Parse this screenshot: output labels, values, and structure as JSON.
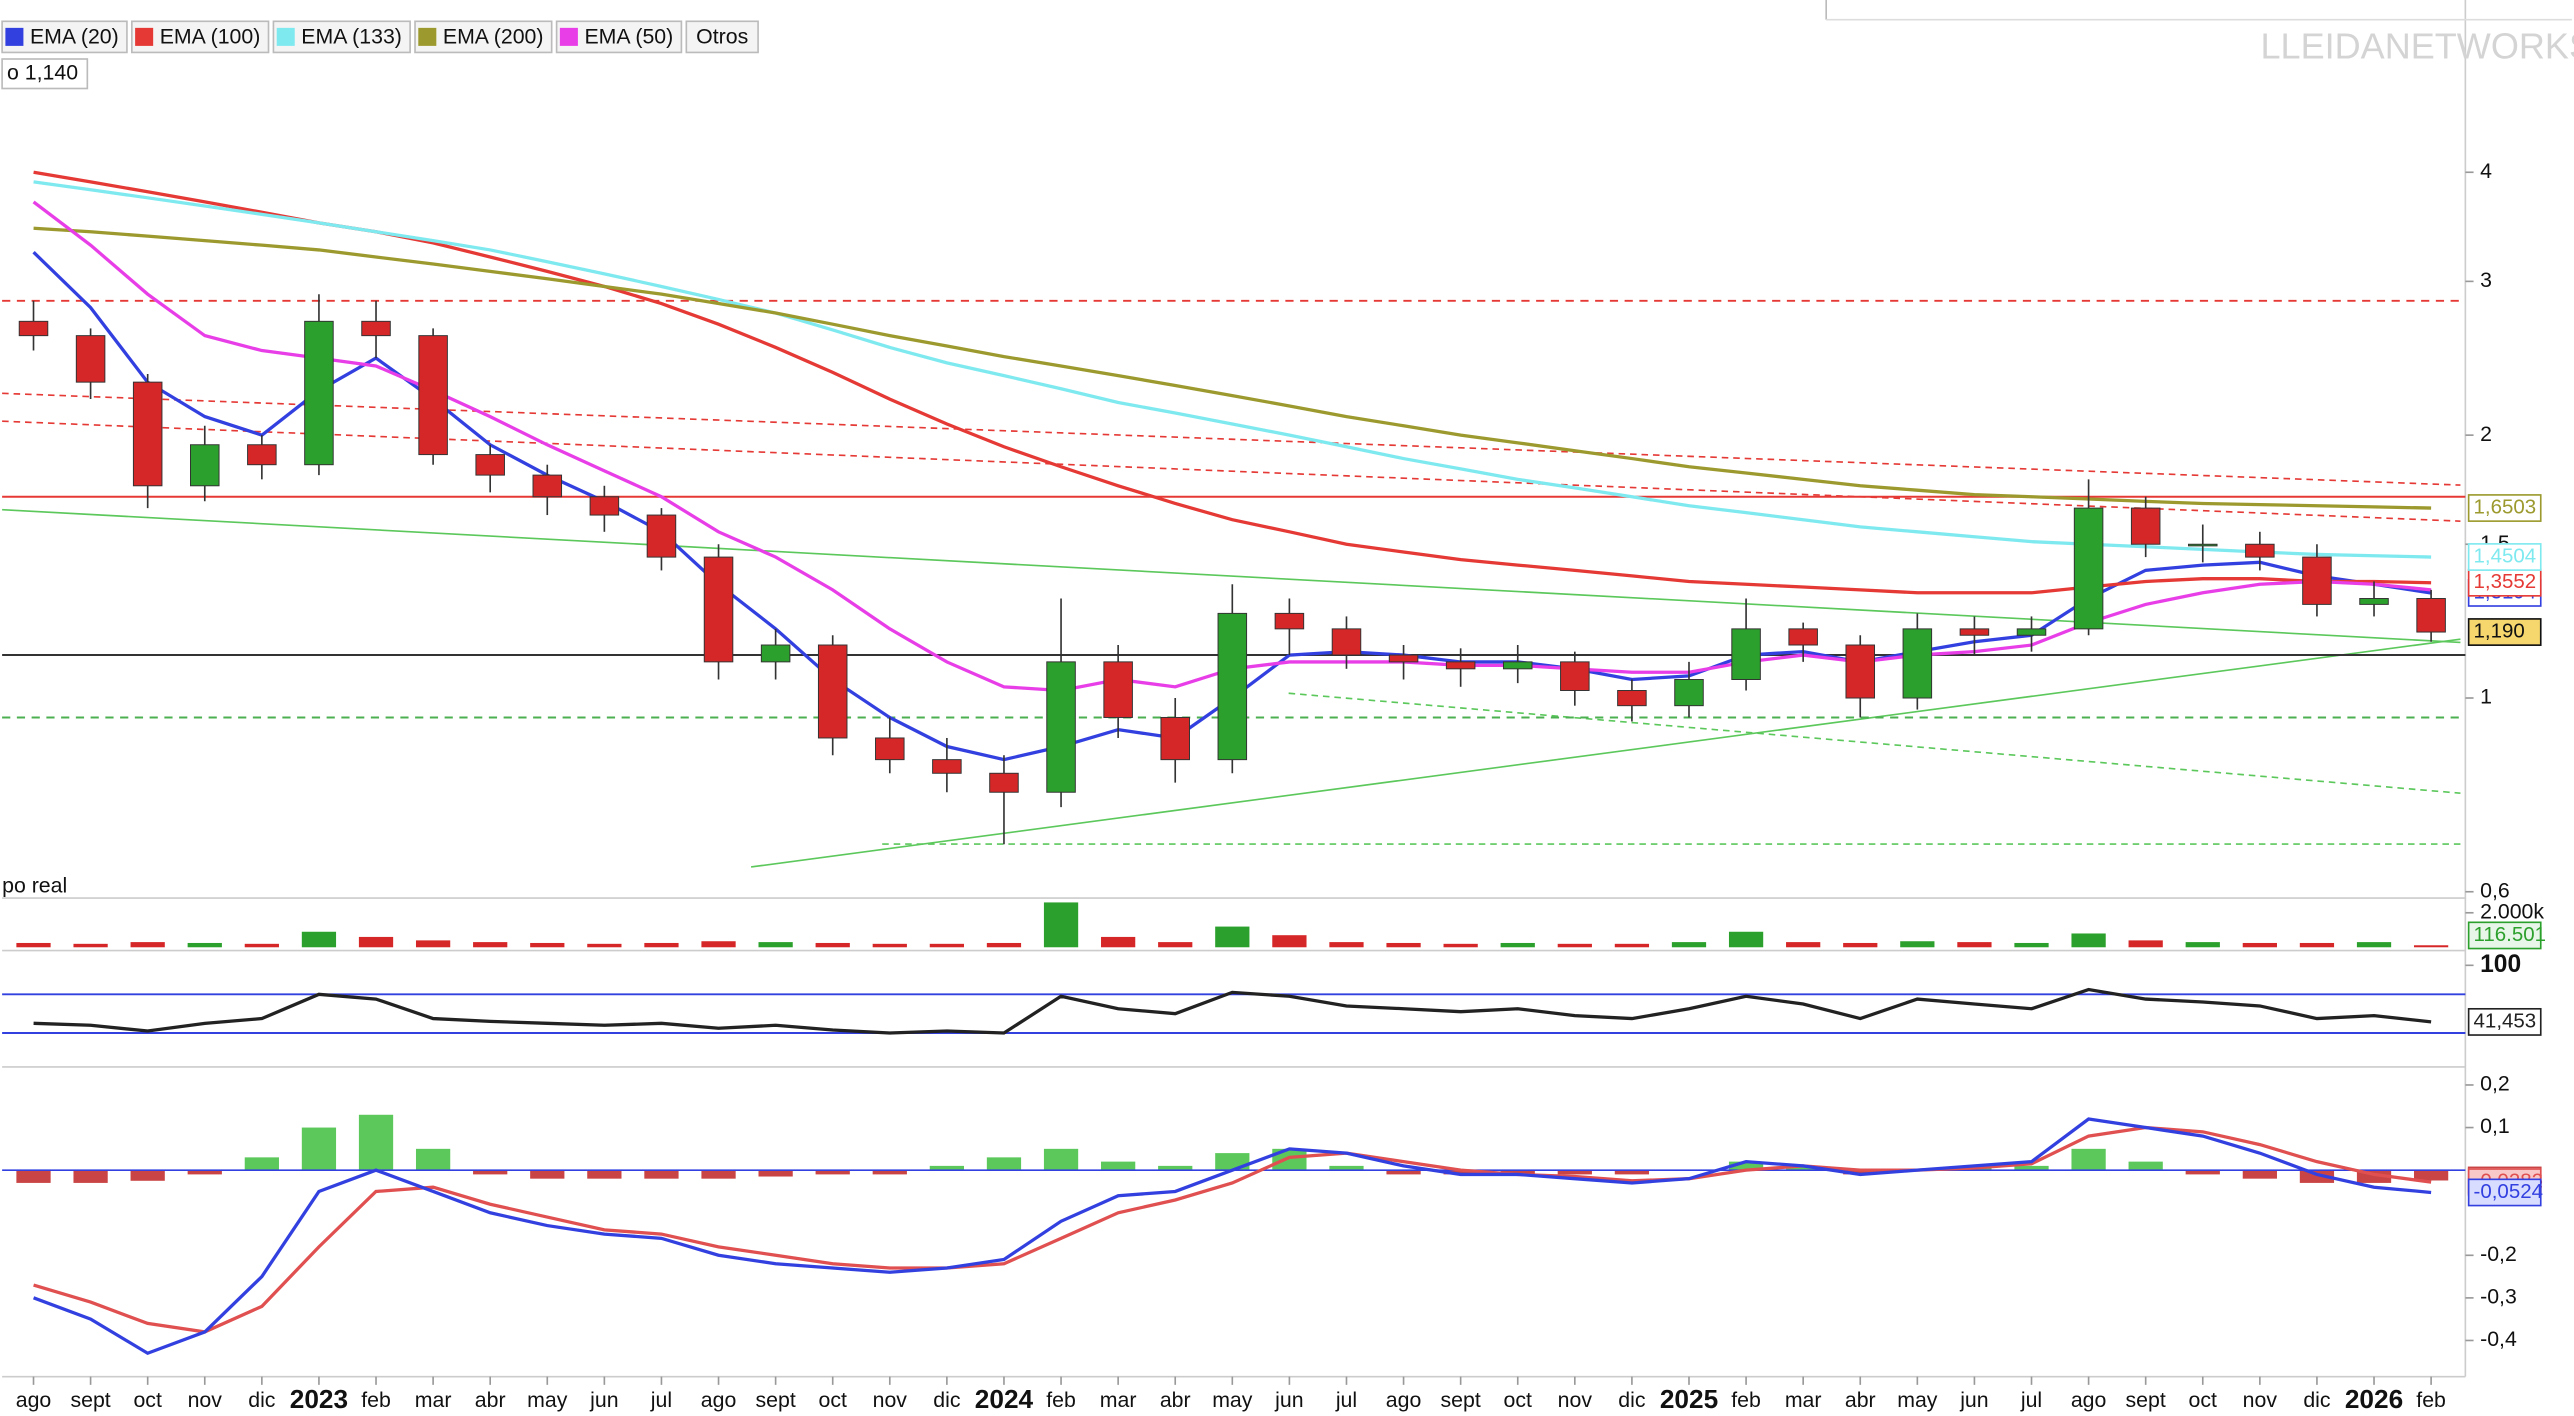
{
  "legend_extra": "Otros",
  "info": "o 1,140",
  "watermark": "LLEIDANETWORKS",
  "realtime": "po real",
  "chart_data": [
    {
      "type": "candlestick",
      "log": true,
      "xlim": [
        -0.55,
        42.6
      ],
      "ylim": [
        0.59,
        6.3
      ],
      "yticks": [
        {
          "value": 0.6,
          "label": "0,6"
        },
        1,
        {
          "value": 1.5,
          "label": "1,5"
        },
        2,
        3,
        4
      ],
      "x": [
        0,
        1,
        2,
        3,
        4,
        5,
        6,
        7,
        8,
        9,
        10,
        11,
        12,
        13,
        14,
        15,
        16,
        17,
        18,
        19,
        20,
        21,
        22,
        23,
        24,
        25,
        26,
        27,
        28,
        29,
        30,
        31,
        32,
        33,
        34,
        35,
        36,
        37,
        38,
        39,
        40,
        41,
        42
      ],
      "open": [
        2.7,
        2.6,
        2.3,
        1.75,
        1.95,
        1.85,
        2.7,
        2.6,
        1.9,
        1.8,
        1.7,
        1.62,
        1.45,
        1.1,
        1.15,
        0.9,
        0.85,
        0.82,
        0.78,
        1.1,
        0.95,
        0.85,
        1.25,
        1.2,
        1.12,
        1.1,
        1.08,
        1.1,
        1.02,
        0.98,
        1.05,
        1.2,
        1.15,
        1.0,
        1.2,
        1.18,
        1.2,
        1.65,
        1.5,
        1.5,
        1.45,
        1.28,
        1.3
      ],
      "high": [
        2.85,
        2.65,
        2.35,
        2.05,
        2.0,
        2.9,
        2.85,
        2.65,
        1.95,
        1.85,
        1.75,
        1.65,
        1.5,
        1.2,
        1.18,
        0.95,
        0.9,
        0.86,
        1.3,
        1.15,
        1.0,
        1.35,
        1.3,
        1.24,
        1.15,
        1.14,
        1.15,
        1.13,
        1.05,
        1.1,
        1.3,
        1.22,
        1.18,
        1.25,
        1.24,
        1.24,
        1.78,
        1.7,
        1.58,
        1.55,
        1.5,
        1.36,
        1.33
      ],
      "low": [
        2.5,
        2.2,
        1.65,
        1.68,
        1.78,
        1.8,
        2.45,
        1.85,
        1.72,
        1.62,
        1.55,
        1.4,
        1.05,
        1.05,
        0.86,
        0.82,
        0.78,
        0.68,
        0.75,
        0.9,
        0.8,
        0.82,
        1.12,
        1.08,
        1.05,
        1.03,
        1.04,
        0.98,
        0.94,
        0.95,
        1.02,
        1.1,
        0.95,
        0.97,
        1.12,
        1.13,
        1.18,
        1.45,
        1.43,
        1.4,
        1.24,
        1.24,
        1.16
      ],
      "close": [
        2.6,
        2.3,
        1.75,
        1.95,
        1.85,
        2.7,
        2.6,
        1.9,
        1.8,
        1.7,
        1.62,
        1.45,
        1.1,
        1.15,
        0.9,
        0.85,
        0.82,
        0.78,
        1.1,
        0.95,
        0.85,
        1.25,
        1.2,
        1.12,
        1.1,
        1.08,
        1.1,
        1.02,
        0.98,
        1.05,
        1.2,
        1.15,
        1.0,
        1.2,
        1.18,
        1.2,
        1.65,
        1.5,
        1.5,
        1.45,
        1.28,
        1.3,
        1.19
      ],
      "up_color": "#2ca02c",
      "down_color": "#d62728",
      "last_label": "1,190",
      "last_label_color": "#f5d76e",
      "hlines": [
        {
          "value": 2.85,
          "color": "#e53935",
          "dash": true
        },
        {
          "value": 1.7,
          "color": "#e53935",
          "dash": false
        },
        {
          "value": 1.12,
          "color": "#333333",
          "dash": false
        },
        {
          "value": 0.95,
          "color": "#4caf50",
          "dash": true
        }
      ],
      "series": [
        {
          "name": "EMA (20)",
          "color": "#3340e0",
          "values": [
            3.24,
            2.8,
            2.3,
            2.1,
            2.0,
            2.25,
            2.45,
            2.2,
            1.95,
            1.8,
            1.68,
            1.55,
            1.35,
            1.2,
            1.05,
            0.95,
            0.88,
            0.85,
            0.88,
            0.92,
            0.9,
            1.0,
            1.12,
            1.13,
            1.12,
            1.1,
            1.1,
            1.08,
            1.05,
            1.06,
            1.12,
            1.13,
            1.1,
            1.13,
            1.16,
            1.18,
            1.3,
            1.4,
            1.42,
            1.43,
            1.38,
            1.35,
            1.3194
          ],
          "last_label": "1,3194"
        },
        {
          "name": "EMA (100)",
          "color": "#e53935",
          "values": [
            4.0,
            3.9,
            3.8,
            3.7,
            3.6,
            3.5,
            3.42,
            3.32,
            3.2,
            3.08,
            2.96,
            2.83,
            2.68,
            2.52,
            2.36,
            2.2,
            2.06,
            1.94,
            1.84,
            1.75,
            1.67,
            1.6,
            1.55,
            1.5,
            1.47,
            1.44,
            1.42,
            1.4,
            1.38,
            1.36,
            1.35,
            1.34,
            1.33,
            1.32,
            1.32,
            1.32,
            1.34,
            1.36,
            1.37,
            1.37,
            1.36,
            1.36,
            1.3552
          ],
          "last_label": "1,3552"
        },
        {
          "name": "EMA (133)",
          "color": "#7fe9f0",
          "values": [
            3.9,
            3.82,
            3.74,
            3.66,
            3.58,
            3.5,
            3.42,
            3.34,
            3.26,
            3.16,
            3.06,
            2.96,
            2.86,
            2.76,
            2.64,
            2.52,
            2.42,
            2.34,
            2.26,
            2.18,
            2.12,
            2.06,
            2.0,
            1.94,
            1.88,
            1.83,
            1.78,
            1.74,
            1.7,
            1.66,
            1.63,
            1.6,
            1.57,
            1.55,
            1.53,
            1.51,
            1.5,
            1.49,
            1.48,
            1.47,
            1.46,
            1.455,
            1.4504
          ],
          "last_label": "1,4504"
        },
        {
          "name": "EMA (200)",
          "color": "#9c9a2e",
          "values": [
            3.45,
            3.42,
            3.38,
            3.34,
            3.3,
            3.26,
            3.2,
            3.14,
            3.08,
            3.02,
            2.96,
            2.9,
            2.83,
            2.76,
            2.68,
            2.6,
            2.53,
            2.46,
            2.4,
            2.34,
            2.28,
            2.22,
            2.16,
            2.1,
            2.05,
            2.0,
            1.96,
            1.92,
            1.88,
            1.84,
            1.81,
            1.78,
            1.75,
            1.73,
            1.71,
            1.7,
            1.69,
            1.68,
            1.67,
            1.665,
            1.66,
            1.655,
            1.6503
          ],
          "last_label": "1,6503"
        },
        {
          "name": "EMA (50)",
          "color": "#e83ee8",
          "values": [
            3.7,
            3.3,
            2.9,
            2.6,
            2.5,
            2.45,
            2.4,
            2.25,
            2.1,
            1.95,
            1.82,
            1.7,
            1.55,
            1.45,
            1.33,
            1.2,
            1.1,
            1.03,
            1.02,
            1.05,
            1.03,
            1.08,
            1.1,
            1.1,
            1.1,
            1.09,
            1.09,
            1.08,
            1.07,
            1.07,
            1.1,
            1.12,
            1.1,
            1.12,
            1.13,
            1.15,
            1.22,
            1.28,
            1.32,
            1.35,
            1.36,
            1.35,
            1.33
          ]
        }
      ]
    },
    {
      "type": "bar",
      "xlim": [
        -0.55,
        42.6
      ],
      "ylim": [
        0,
        2850000
      ],
      "yticks": [
        {
          "value": 2000000,
          "label": "2.000k"
        }
      ],
      "x": [
        0,
        1,
        2,
        3,
        4,
        5,
        6,
        7,
        8,
        9,
        10,
        11,
        12,
        13,
        14,
        15,
        16,
        17,
        18,
        19,
        20,
        21,
        22,
        23,
        24,
        25,
        26,
        27,
        28,
        29,
        30,
        31,
        32,
        33,
        34,
        35,
        36,
        37,
        38,
        39,
        40,
        41,
        42
      ],
      "values": [
        250000,
        200000,
        300000,
        250000,
        200000,
        900000,
        600000,
        400000,
        300000,
        250000,
        200000,
        250000,
        350000,
        300000,
        250000,
        200000,
        200000,
        250000,
        2600000,
        600000,
        300000,
        1200000,
        700000,
        300000,
        250000,
        200000,
        250000,
        200000,
        200000,
        300000,
        900000,
        300000,
        250000,
        350000,
        300000,
        250000,
        800000,
        400000,
        300000,
        250000,
        250000,
        300000,
        116501
      ],
      "last_label": "116.501",
      "last_label_color": "#e8f5e9"
    },
    {
      "type": "line",
      "xlim": [
        -0.55,
        42.6
      ],
      "ylim": [
        0,
        100
      ],
      "yticks": [
        100
      ],
      "hlines": [
        {
          "value": 70,
          "color": "#3340e0",
          "dash": false
        },
        {
          "value": 30,
          "color": "#3340e0",
          "dash": false
        }
      ],
      "x": [
        0,
        1,
        2,
        3,
        4,
        5,
        6,
        7,
        8,
        9,
        10,
        11,
        12,
        13,
        14,
        15,
        16,
        17,
        18,
        19,
        20,
        21,
        22,
        23,
        24,
        25,
        26,
        27,
        28,
        29,
        30,
        31,
        32,
        33,
        34,
        35,
        36,
        37,
        38,
        39,
        40,
        41,
        42
      ],
      "series": [
        {
          "color": "#222222",
          "values": [
            40,
            38,
            32,
            40,
            45,
            70,
            65,
            45,
            42,
            40,
            38,
            40,
            35,
            38,
            33,
            30,
            32,
            30,
            68,
            55,
            50,
            72,
            68,
            58,
            55,
            52,
            55,
            48,
            45,
            55,
            68,
            60,
            45,
            65,
            60,
            55,
            75,
            65,
            62,
            58,
            45,
            48,
            41.453
          ],
          "last_label": "41,453"
        }
      ]
    },
    {
      "type": "line",
      "xlim": [
        -0.55,
        42.6
      ],
      "ylim": [
        -0.485,
        0.227
      ],
      "yticks": [
        {
          "value": 0.2,
          "label": "0,2"
        },
        {
          "value": 0.1,
          "label": "0,1"
        },
        {
          "value": -0.2,
          "label": "-0,2"
        },
        {
          "value": -0.3,
          "label": "-0,3"
        },
        {
          "value": -0.4,
          "label": "-0,4"
        }
      ],
      "xticks": [
        {
          "value": 0,
          "label": "ago"
        },
        {
          "value": 1,
          "label": "sept"
        },
        {
          "value": 2,
          "label": "oct"
        },
        {
          "value": 3,
          "label": "nov"
        },
        {
          "value": 4,
          "label": "dic"
        },
        {
          "value": 5,
          "label": "2023"
        },
        {
          "value": 6,
          "label": "feb"
        },
        {
          "value": 7,
          "label": "mar"
        },
        {
          "value": 8,
          "label": "abr"
        },
        {
          "value": 9,
          "label": "may"
        },
        {
          "value": 10,
          "label": "jun"
        },
        {
          "value": 11,
          "label": "jul"
        },
        {
          "value": 12,
          "label": "ago"
        },
        {
          "value": 13,
          "label": "sept"
        },
        {
          "value": 14,
          "label": "oct"
        },
        {
          "value": 15,
          "label": "nov"
        },
        {
          "value": 16,
          "label": "dic"
        },
        {
          "value": 17,
          "label": "2024"
        },
        {
          "value": 18,
          "label": "feb"
        },
        {
          "value": 19,
          "label": "mar"
        },
        {
          "value": 20,
          "label": "abr"
        },
        {
          "value": 21,
          "label": "may"
        },
        {
          "value": 22,
          "label": "jun"
        },
        {
          "value": 23,
          "label": "jul"
        },
        {
          "value": 24,
          "label": "ago"
        },
        {
          "value": 25,
          "label": "sept"
        },
        {
          "value": 26,
          "label": "oct"
        },
        {
          "value": 27,
          "label": "nov"
        },
        {
          "value": 28,
          "label": "dic"
        },
        {
          "value": 29,
          "label": "2025"
        },
        {
          "value": 30,
          "label": "feb"
        },
        {
          "value": 31,
          "label": "mar"
        },
        {
          "value": 32,
          "label": "abr"
        },
        {
          "value": 33,
          "label": "may"
        },
        {
          "value": 34,
          "label": "jun"
        },
        {
          "value": 35,
          "label": "jul"
        },
        {
          "value": 36,
          "label": "ago"
        },
        {
          "value": 37,
          "label": "sept"
        },
        {
          "value": 38,
          "label": "oct"
        },
        {
          "value": 39,
          "label": "nov"
        },
        {
          "value": 40,
          "label": "dic"
        },
        {
          "value": 41,
          "label": "2026"
        },
        {
          "value": 42,
          "label": "feb"
        }
      ],
      "x": [
        0,
        1,
        2,
        3,
        4,
        5,
        6,
        7,
        8,
        9,
        10,
        11,
        12,
        13,
        14,
        15,
        16,
        17,
        18,
        19,
        20,
        21,
        22,
        23,
        24,
        25,
        26,
        27,
        28,
        29,
        30,
        31,
        32,
        33,
        34,
        35,
        36,
        37,
        38,
        39,
        40,
        41,
        42
      ],
      "series": [
        {
          "kind": "bar",
          "pos_color": "#5cc85c",
          "neg_color": "#c94444",
          "values": [
            -0.03,
            -0.03,
            -0.025,
            -0.01,
            0.03,
            0.1,
            0.13,
            0.05,
            -0.01,
            -0.02,
            -0.02,
            -0.02,
            -0.02,
            -0.015,
            -0.01,
            -0.01,
            0.01,
            0.03,
            0.05,
            0.02,
            0.01,
            0.04,
            0.05,
            0.01,
            -0.01,
            -0.01,
            -0.01,
            -0.01,
            -0.01,
            0.0,
            0.02,
            0.01,
            -0.01,
            0.0,
            0.01,
            0.01,
            0.05,
            0.02,
            -0.01,
            -0.02,
            -0.03,
            -0.03,
            -0.0243
          ],
          "last_label": "-0,0243",
          "last_label_color": "#f8c8c8"
        },
        {
          "color": "#e05050",
          "values": [
            -0.27,
            -0.31,
            -0.36,
            -0.38,
            -0.32,
            -0.18,
            -0.05,
            -0.04,
            -0.08,
            -0.11,
            -0.14,
            -0.15,
            -0.18,
            -0.2,
            -0.22,
            -0.23,
            -0.23,
            -0.22,
            -0.16,
            -0.1,
            -0.07,
            -0.03,
            0.03,
            0.04,
            0.02,
            0.0,
            -0.01,
            -0.015,
            -0.025,
            -0.02,
            0.0,
            0.01,
            0.0,
            0.0,
            0.005,
            0.015,
            0.08,
            0.1,
            0.09,
            0.06,
            0.02,
            -0.01,
            -0.0282
          ],
          "last_label": "-0,0282",
          "last_label_color": "#f8c8c8"
        },
        {
          "color": "#3340e0",
          "values": [
            -0.3,
            -0.35,
            -0.43,
            -0.38,
            -0.25,
            -0.05,
            0.0,
            -0.05,
            -0.1,
            -0.13,
            -0.15,
            -0.16,
            -0.2,
            -0.22,
            -0.23,
            -0.24,
            -0.23,
            -0.21,
            -0.12,
            -0.06,
            -0.05,
            0.0,
            0.05,
            0.04,
            0.01,
            -0.01,
            -0.01,
            -0.02,
            -0.03,
            -0.02,
            0.02,
            0.01,
            -0.01,
            0.0,
            0.01,
            0.02,
            0.12,
            0.1,
            0.08,
            0.04,
            -0.01,
            -0.04,
            -0.0524
          ],
          "last_label": "-0,0524",
          "last_label_color": "#d8dcff"
        }
      ]
    }
  ]
}
